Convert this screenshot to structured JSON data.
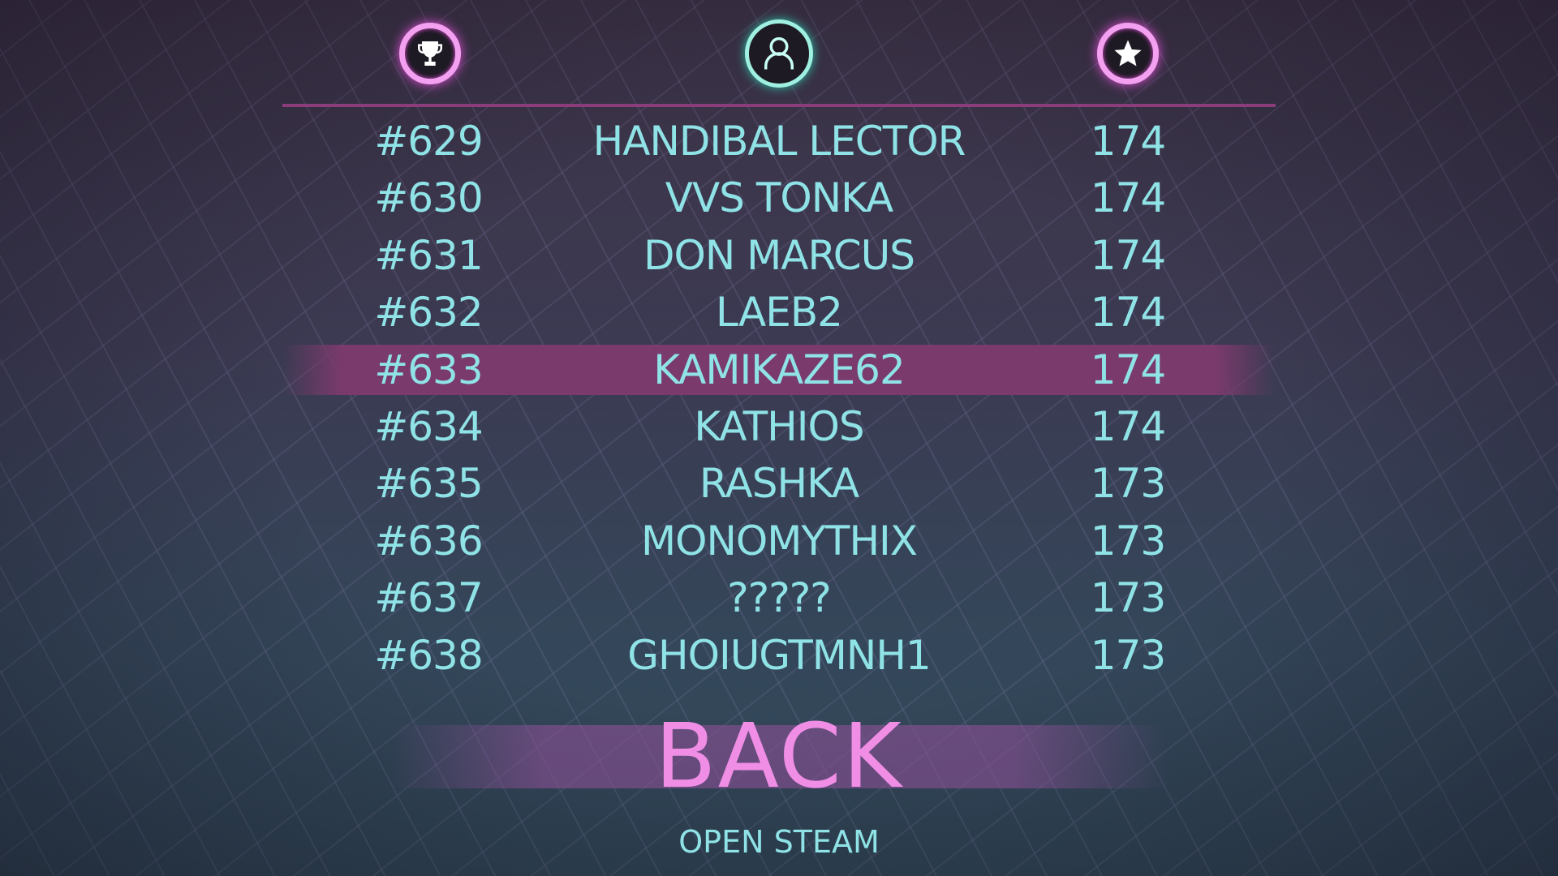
{
  "header": {
    "icons": [
      "trophy-icon",
      "person-icon",
      "star-icon"
    ]
  },
  "rows": [
    {
      "rank": "#629",
      "name": "HANDIBAL LECTOR",
      "score": "174"
    },
    {
      "rank": "#630",
      "name": "VVS TONKA",
      "score": "174"
    },
    {
      "rank": "#631",
      "name": "DON MARCUS",
      "score": "174"
    },
    {
      "rank": "#632",
      "name": "LAEB2",
      "score": "174"
    },
    {
      "rank": "#633",
      "name": "KAMIKAZE62",
      "score": "174",
      "highlighted": true
    },
    {
      "rank": "#634",
      "name": "KATHIOS",
      "score": "174"
    },
    {
      "rank": "#635",
      "name": "RASHKA",
      "score": "173"
    },
    {
      "rank": "#636",
      "name": "MONOMYTHIX",
      "score": "173"
    },
    {
      "rank": "#637",
      "name": "?????",
      "score": "173"
    },
    {
      "rank": "#638",
      "name": "GHOIUGTMNH1",
      "score": "173"
    }
  ],
  "buttons": {
    "back": "BACK",
    "open_steam": "OPEN STEAM"
  },
  "colors": {
    "accent_pink": "#f08ee6",
    "text_teal": "#8fe3e6",
    "highlight": "#7a3a6c"
  }
}
